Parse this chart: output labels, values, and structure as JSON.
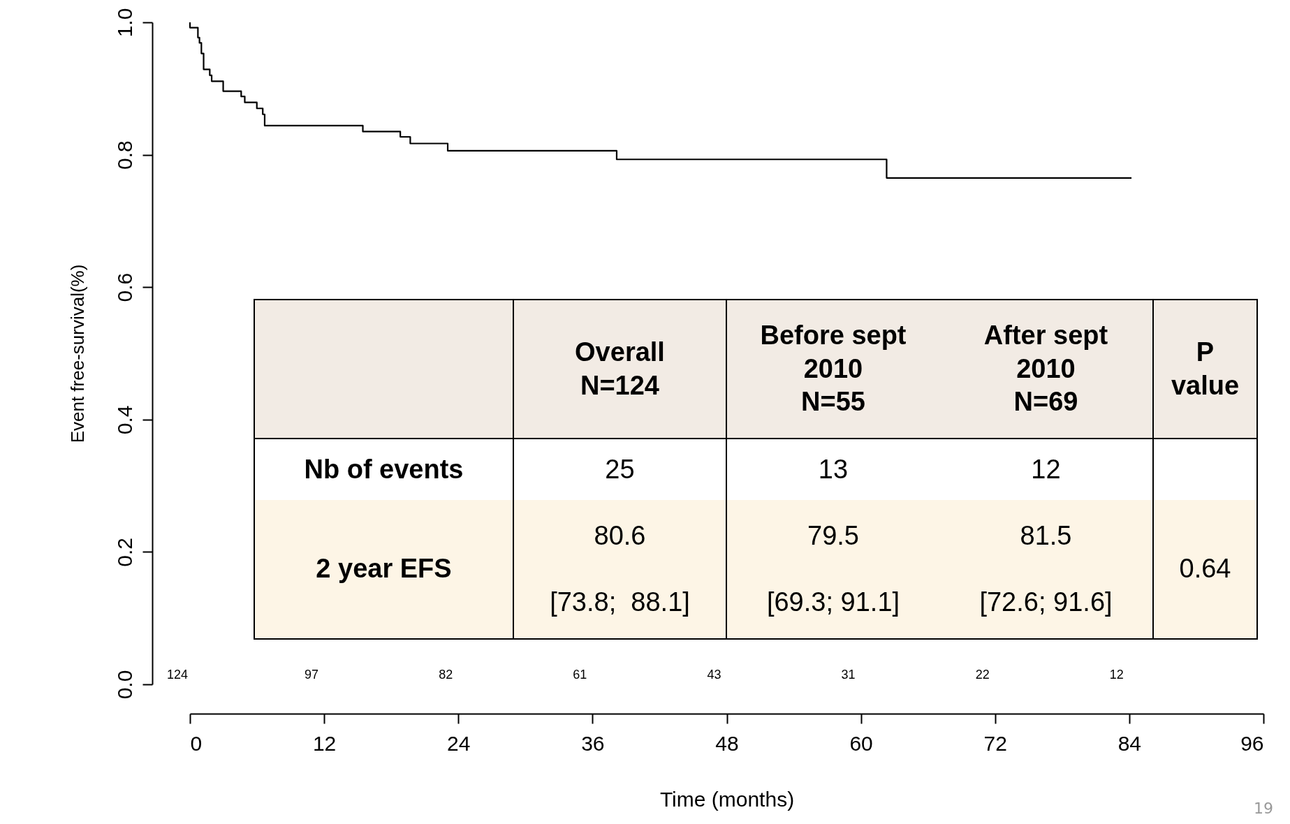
{
  "chart_data": {
    "type": "step",
    "xlabel": "Time (months)",
    "ylabel": "Event free-survival(%)",
    "x": [
      0,
      0,
      0.71,
      0.85,
      1.02,
      1.22,
      1.77,
      1.94,
      2.97,
      4.58,
      4.9,
      5.98,
      6.51,
      6.68,
      15.46,
      18.81,
      19.7,
      23.05,
      38.16,
      62.3,
      84.2
    ],
    "series": [
      {
        "color": "#000000",
        "values": [
          1.0,
          0.992,
          0.977,
          0.969,
          0.953,
          0.929,
          0.92,
          0.911,
          0.896,
          0.888,
          0.879,
          0.87,
          0.861,
          0.844,
          0.835,
          0.827,
          0.817,
          0.806,
          0.793,
          0.765,
          0.765
        ]
      }
    ],
    "xlim": [
      0,
      96
    ],
    "xticks": [
      0,
      12,
      24,
      36,
      48,
      60,
      72,
      84,
      96
    ],
    "ylim": [
      0,
      1
    ],
    "yticks": [
      {
        "value": 0,
        "label": "0.0"
      },
      0.2,
      0.4,
      0.6,
      0.8,
      {
        "value": 1,
        "label": "1.0"
      }
    ],
    "grid": false,
    "annotations": [
      "124",
      "97",
      "82",
      "61",
      "43",
      "31",
      "22",
      "12",
      "Overall\nN=124",
      "Before sept\n2010\nN=55",
      "After sept\n2010\nN=69",
      "P\nvalue",
      "Nb of events",
      "25",
      "13",
      "12",
      "2 year EFS",
      "80.6\n\n[73.8;  88.1]",
      "79.5\n\n[69.3; 91.1]",
      "81.5\n\n[72.6; 91.6]",
      "0.64",
      "19"
    ]
  }
}
